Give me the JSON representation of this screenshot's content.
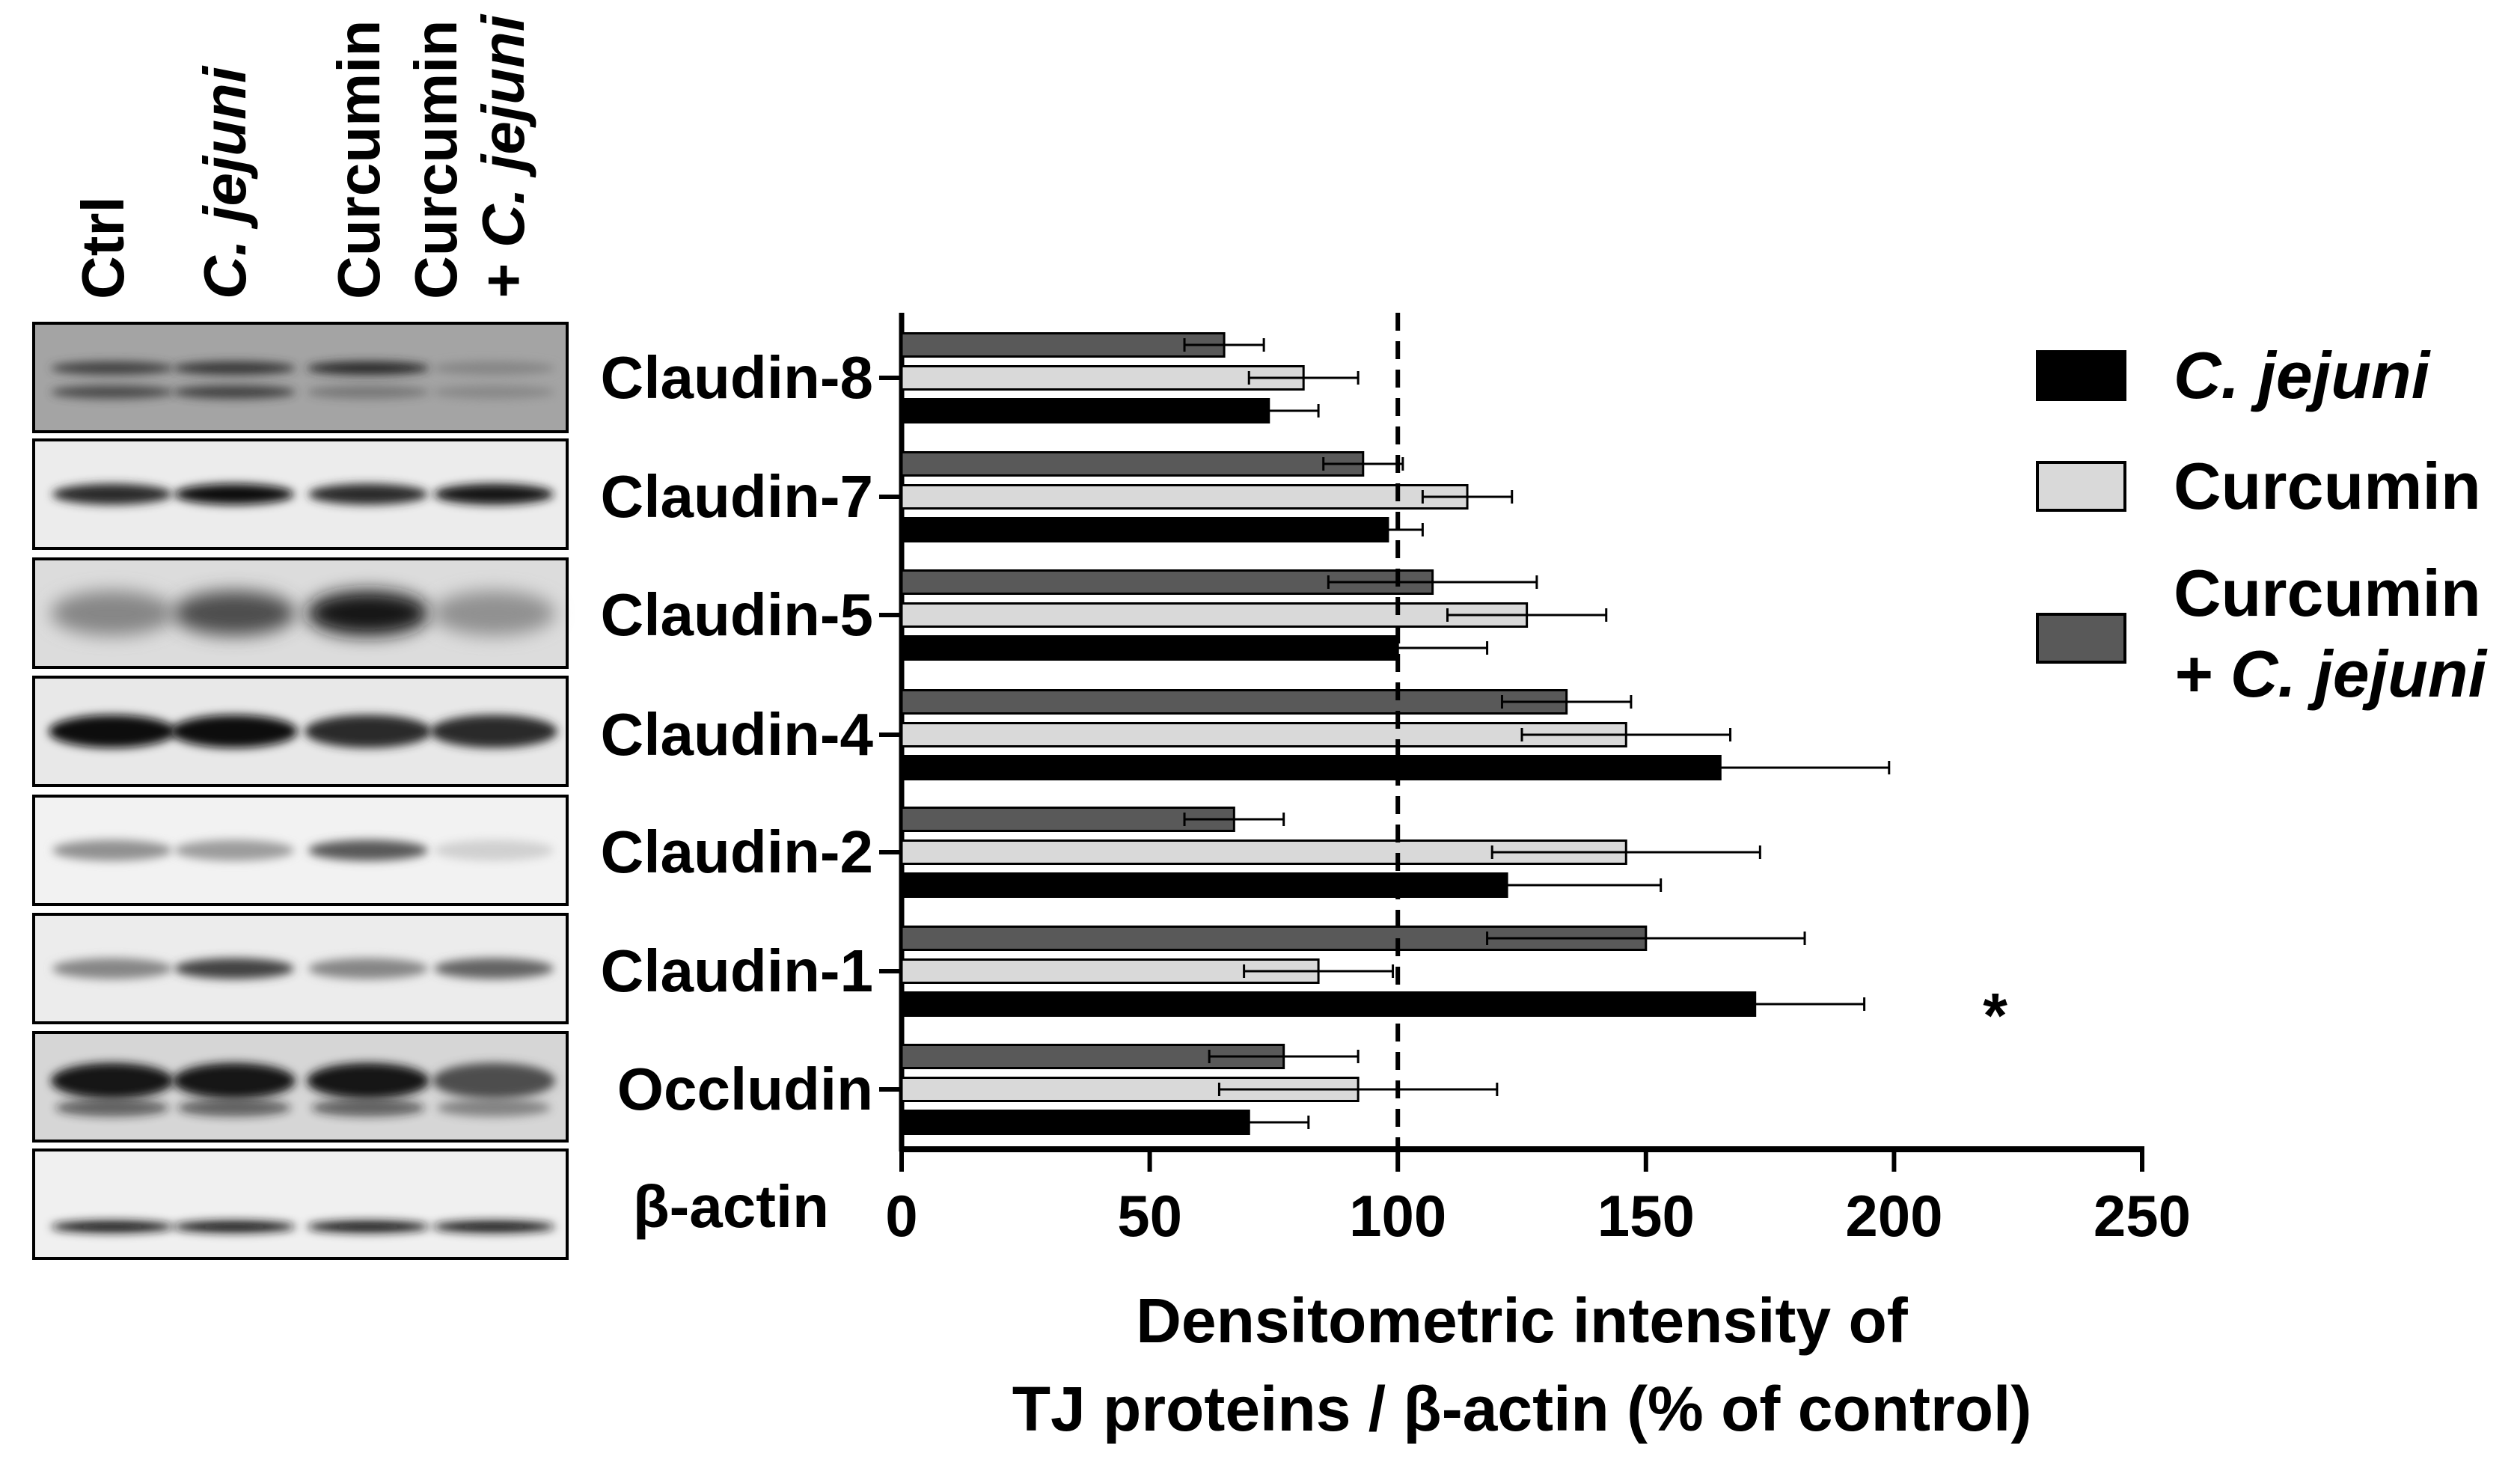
{
  "blot": {
    "lanes": [
      {
        "text": "Ctrl"
      },
      {
        "text": "C. jejuni",
        "italic": true
      },
      {
        "text": "Curcumin"
      },
      {
        "text": "Curcumin",
        "text2": "+ C. jejuni",
        "italic2": true
      }
    ],
    "bands": [
      {
        "name": "claudin-8",
        "intensities": [
          0.75,
          0.8,
          0.85,
          0.45
        ],
        "type": "double",
        "background": "#a4a4a4"
      },
      {
        "name": "claudin-7",
        "intensities": [
          0.85,
          1.0,
          0.85,
          0.95
        ],
        "type": "single",
        "background": "#ececec"
      },
      {
        "name": "claudin-5",
        "intensities": [
          0.45,
          0.7,
          0.95,
          0.4
        ],
        "type": "diffuse",
        "background": "#dcdcdc"
      },
      {
        "name": "claudin-4",
        "intensities": [
          1.0,
          1.0,
          0.85,
          0.85
        ],
        "type": "thick",
        "background": "#e8e8e8"
      },
      {
        "name": "claudin-2",
        "intensities": [
          0.4,
          0.35,
          0.65,
          0.12
        ],
        "type": "single",
        "background": "#f2f2f2"
      },
      {
        "name": "claudin-1",
        "intensities": [
          0.45,
          0.75,
          0.45,
          0.6
        ],
        "type": "single",
        "background": "#ececec"
      },
      {
        "name": "occludin",
        "intensities": [
          0.95,
          0.95,
          0.95,
          0.7
        ],
        "type": "smear",
        "background": "#d6d6d6"
      },
      {
        "name": "beta-actin",
        "intensities": [
          0.95,
          0.95,
          0.95,
          0.95
        ],
        "type": "thin",
        "background": "#f0f0f0"
      }
    ]
  },
  "chart_data": {
    "type": "bar",
    "orientation": "horizontal",
    "categories": [
      "Claudin-8",
      "Claudin-7",
      "Claudin-5",
      "Claudin-4",
      "Claudin-2",
      "Claudin-1",
      "Occludin"
    ],
    "extra_row_label": "β-actin",
    "series": [
      {
        "name": "C. jejuni",
        "italic": true,
        "color": "#000000",
        "values": [
          74,
          98,
          100,
          165,
          122,
          172,
          70
        ],
        "errors": [
          10,
          7,
          18,
          34,
          31,
          22,
          12
        ]
      },
      {
        "name": "Curcumin",
        "color": "#d9d9d9",
        "values": [
          81,
          114,
          126,
          146,
          146,
          84,
          92
        ],
        "errors": [
          11,
          9,
          16,
          21,
          27,
          15,
          28
        ]
      },
      {
        "name": "Curcumin",
        "name2": "+ C. jejuni",
        "italic2": true,
        "color": "#595959",
        "values": [
          65,
          93,
          107,
          134,
          67,
          150,
          77
        ],
        "errors": [
          8,
          8,
          21,
          13,
          10,
          32,
          15
        ]
      }
    ],
    "xlim": [
      0,
      250
    ],
    "xticks": [
      0,
      50,
      100,
      150,
      200,
      250
    ],
    "xlabel": [
      "Densitometric intensity of",
      "TJ proteins / β-actin (% of control)"
    ],
    "reference_line": 100,
    "annotations": [
      {
        "category": "Claudin-1",
        "series": 0,
        "text": "*"
      }
    ]
  }
}
